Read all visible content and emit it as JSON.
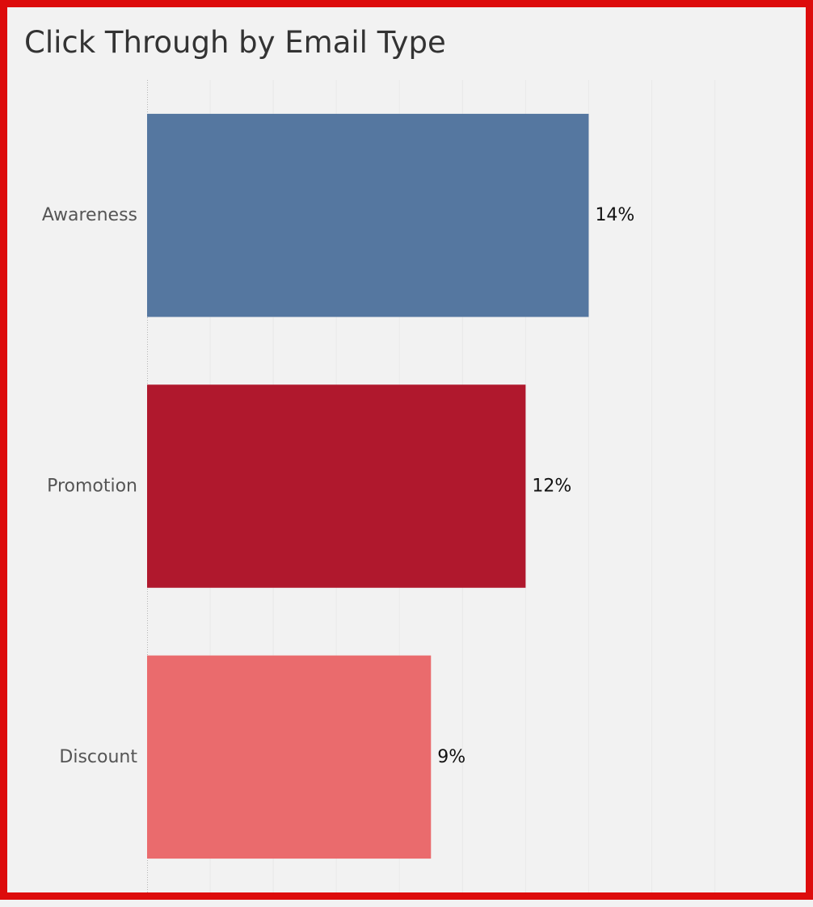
{
  "chart_data": {
    "type": "bar",
    "orientation": "horizontal",
    "title": "Click Through by Email Type",
    "categories": [
      "Awareness",
      "Promotion",
      "Discount"
    ],
    "values": [
      14,
      12,
      9
    ],
    "value_labels": [
      "14%",
      "12%",
      "9%"
    ],
    "colors": [
      "#5577a0",
      "#b0182d",
      "#ea6b6d"
    ],
    "xlim": [
      0,
      19
    ],
    "grid": "vertical-faint",
    "legend": "none"
  },
  "colors": {
    "border": "#dd0c0c",
    "background": "#f2f2f2"
  }
}
